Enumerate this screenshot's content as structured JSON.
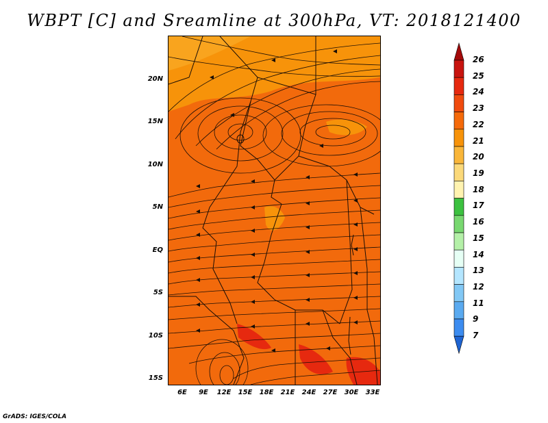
{
  "title": "WBPT [C] and Sreamline at 300hPa, VT: 2018121400",
  "footer": "GrADS: IGES/COLA",
  "lat_labels": [
    "20N",
    "15N",
    "10N",
    "5N",
    "EQ",
    "5S",
    "10S",
    "15S"
  ],
  "lon_labels": [
    "6E",
    "9E",
    "12E",
    "15E",
    "18E",
    "21E",
    "24E",
    "27E",
    "30E",
    "33E"
  ],
  "colorbar": {
    "labels": [
      "26",
      "25",
      "24",
      "23",
      "22",
      "21",
      "20",
      "19",
      "18",
      "17",
      "16",
      "15",
      "14",
      "13",
      "12",
      "11",
      "9",
      "7"
    ],
    "colors": [
      "#a40a0a",
      "#c8140f",
      "#e6290f",
      "#f04b0e",
      "#f56a0a",
      "#f7930a",
      "#f9b63a",
      "#fbd97a",
      "#fff3b0",
      "#3cc140",
      "#78d870",
      "#b4f0a8",
      "#e6fff5",
      "#b4e6ff",
      "#82c8f5",
      "#5aaaf0",
      "#3c8cf0",
      "#1e64d2"
    ]
  },
  "map": {
    "base_color": "#f26a0c",
    "lat_range": [
      -16,
      24
    ],
    "lon_range": [
      4,
      33
    ]
  }
}
